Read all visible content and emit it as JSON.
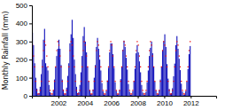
{
  "chart_data": {
    "type": "bar",
    "ylabel": "Monthly Rainfall (mm)",
    "x": [
      2000.0416666666667,
      2000.125,
      2000.2083333333333,
      2000.2916666666667,
      2000.375,
      2000.4583333333333,
      2000.5416666666667,
      2000.625,
      2000.7083333333333,
      2000.7916666666667,
      2000.875,
      2000.9583333333333,
      2001.0416666666667,
      2001.125,
      2001.2083333333333,
      2001.2916666666667,
      2001.375,
      2001.4583333333333,
      2001.5416666666667,
      2001.625,
      2001.7083333333333,
      2001.7916666666667,
      2001.875,
      2001.9583333333333,
      2002.0416666666667,
      2002.125,
      2002.2083333333333,
      2002.2916666666667,
      2002.375,
      2002.4583333333333,
      2002.5416666666667,
      2002.625,
      2002.7083333333333,
      2002.7916666666667,
      2002.875,
      2002.9583333333333,
      2003.0416666666667,
      2003.125,
      2003.2083333333333,
      2003.2916666666667,
      2003.375,
      2003.4583333333333,
      2003.5416666666667,
      2003.625,
      2003.7083333333333,
      2003.7916666666667,
      2003.875,
      2003.9583333333333,
      2004.0416666666667,
      2004.125,
      2004.2083333333333,
      2004.2916666666667,
      2004.375,
      2004.4583333333333,
      2004.5416666666667,
      2004.625,
      2004.7083333333333,
      2004.7916666666667,
      2004.875,
      2004.9583333333333,
      2005.0416666666667,
      2005.125,
      2005.2083333333333,
      2005.2916666666667,
      2005.375,
      2005.4583333333333,
      2005.5416666666667,
      2005.625,
      2005.7083333333333,
      2005.7916666666667,
      2005.875,
      2005.9583333333333,
      2006.0416666666667,
      2006.125,
      2006.2083333333333,
      2006.2916666666667,
      2006.375,
      2006.4583333333333,
      2006.5416666666667,
      2006.625,
      2006.7083333333333,
      2006.7916666666667,
      2006.875,
      2006.9583333333333,
      2007.0416666666667,
      2007.125,
      2007.2083333333333,
      2007.2916666666667,
      2007.375,
      2007.4583333333333,
      2007.5416666666667,
      2007.625,
      2007.7083333333333,
      2007.7916666666667,
      2007.875,
      2007.9583333333333,
      2008.0416666666667,
      2008.125,
      2008.2083333333333,
      2008.2916666666667,
      2008.375,
      2008.4583333333333,
      2008.5416666666667,
      2008.625,
      2008.7083333333333,
      2008.7916666666667,
      2008.875,
      2008.9583333333333,
      2009.0416666666667,
      2009.125,
      2009.2083333333333,
      2009.2916666666667,
      2009.375,
      2009.4583333333333,
      2009.5416666666667,
      2009.625,
      2009.7083333333333,
      2009.7916666666667,
      2009.875,
      2009.9583333333333,
      2010.0416666666667,
      2010.125,
      2010.2083333333333,
      2010.2916666666667,
      2010.375,
      2010.4583333333333,
      2010.5416666666667,
      2010.625,
      2010.7083333333333,
      2010.7916666666667,
      2010.875,
      2010.9583333333333,
      2011.0416666666667,
      2011.125,
      2011.2083333333333,
      2011.2916666666667,
      2011.375,
      2011.4583333333333,
      2011.5416666666667,
      2011.625,
      2011.7083333333333,
      2011.7916666666667,
      2011.875,
      2011.9583333333333
    ],
    "series": [
      {
        "type": "bar",
        "color": "#1515bb",
        "values": [
          350,
          280,
          180,
          100,
          40,
          10,
          15,
          50,
          120,
          200,
          310,
          370,
          180,
          160,
          140,
          60,
          20,
          5,
          8,
          30,
          90,
          160,
          220,
          260,
          310,
          260,
          170,
          90,
          35,
          8,
          12,
          45,
          110,
          180,
          290,
          340,
          420,
          320,
          200,
          120,
          50,
          15,
          20,
          60,
          130,
          220,
          330,
          380,
          300,
          240,
          160,
          80,
          30,
          8,
          10,
          35,
          100,
          170,
          270,
          320,
          260,
          200,
          140,
          70,
          25,
          6,
          8,
          28,
          85,
          155,
          240,
          290,
          290,
          230,
          155,
          75,
          28,
          7,
          9,
          32,
          92,
          162,
          255,
          305,
          270,
          210,
          145,
          65,
          22,
          5,
          7,
          26,
          80,
          150,
          235,
          280,
          240,
          190,
          130,
          60,
          18,
          4,
          6,
          22,
          75,
          140,
          220,
          265,
          300,
          235,
          158,
          78,
          29,
          7,
          9,
          31,
          90,
          160,
          252,
          302,
          340,
          270,
          175,
          95,
          38,
          10,
          14,
          42,
          108,
          178,
          280,
          330,
          260,
          205,
          142,
          67,
          23,
          5,
          7,
          25,
          78,
          148,
          230,
          275
        ]
      },
      {
        "type": "line",
        "color": "#ee0000",
        "line_style": "dashed",
        "values": [
          280,
          220,
          160,
          80,
          30,
          10,
          10,
          30,
          80,
          160,
          250,
          300,
          280,
          220,
          160,
          80,
          30,
          10,
          10,
          30,
          80,
          160,
          250,
          300,
          280,
          220,
          160,
          80,
          30,
          10,
          10,
          30,
          80,
          160,
          250,
          300,
          280,
          220,
          160,
          80,
          30,
          10,
          10,
          30,
          80,
          160,
          250,
          300,
          280,
          220,
          160,
          80,
          30,
          10,
          10,
          30,
          80,
          160,
          250,
          300,
          280,
          220,
          160,
          80,
          30,
          10,
          10,
          30,
          80,
          160,
          250,
          300,
          280,
          220,
          160,
          80,
          30,
          10,
          10,
          30,
          80,
          160,
          250,
          300,
          280,
          220,
          160,
          80,
          30,
          10,
          10,
          30,
          80,
          160,
          250,
          300,
          280,
          220,
          160,
          80,
          30,
          10,
          10,
          30,
          80,
          160,
          250,
          300,
          280,
          220,
          160,
          80,
          30,
          10,
          10,
          30,
          80,
          160,
          250,
          300,
          280,
          220,
          160,
          80,
          30,
          10,
          10,
          30,
          80,
          160,
          250,
          300,
          280,
          220,
          160,
          80,
          30,
          10,
          10,
          30,
          80,
          160,
          250,
          300
        ]
      }
    ],
    "xlim": [
      2000.0,
      2013.92
    ],
    "xticks": [
      2002,
      2004,
      2006,
      2008,
      2010,
      2012
    ],
    "ylim": [
      0,
      500
    ],
    "yticks": [
      0,
      100,
      200,
      300,
      400,
      500
    ]
  }
}
